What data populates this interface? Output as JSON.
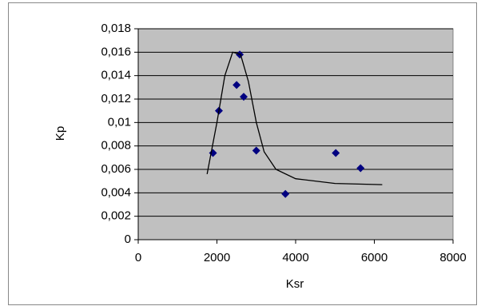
{
  "chart_data": {
    "type": "scatter",
    "x_label": "Ksr",
    "y_label": "Kp",
    "xlim": [
      0,
      8000
    ],
    "xticks": [
      0,
      2000,
      4000,
      6000,
      8000
    ],
    "ylim": [
      0,
      0.018
    ],
    "yticks": [
      0,
      {
        "value": 0.002,
        "label": "0,002"
      },
      {
        "value": 0.004,
        "label": "0,004"
      },
      {
        "value": 0.006,
        "label": "0,006"
      },
      {
        "value": 0.008,
        "label": "0,008"
      },
      {
        "value": 0.01,
        "label": "0,01"
      },
      {
        "value": 0.012,
        "label": "0,012"
      },
      {
        "value": 0.014,
        "label": "0,014"
      },
      {
        "value": 0.016,
        "label": "0,016"
      },
      {
        "value": 0.018,
        "label": "0,018"
      }
    ],
    "grid": true,
    "plot_background": "#c0c0c0",
    "series": [
      {
        "mode": "markers",
        "marker": "diamond",
        "color": "#000080",
        "x": [
          1900,
          2050,
          2500,
          2580,
          2680,
          3000,
          3740,
          5020,
          5650
        ],
        "values": [
          0.0074,
          0.011,
          0.0132,
          0.0158,
          0.0122,
          0.0076,
          0.0039,
          0.0074,
          0.0061
        ]
      },
      {
        "mode": "line",
        "color": "#000000",
        "x": [
          1750,
          2000,
          2200,
          2400,
          2600,
          2800,
          3000,
          3200,
          3500,
          4000,
          5000,
          6200
        ],
        "values": [
          0.0056,
          0.01,
          0.014,
          0.016,
          0.0158,
          0.0135,
          0.01,
          0.0075,
          0.006,
          0.0052,
          0.0048,
          0.0047
        ]
      }
    ]
  }
}
